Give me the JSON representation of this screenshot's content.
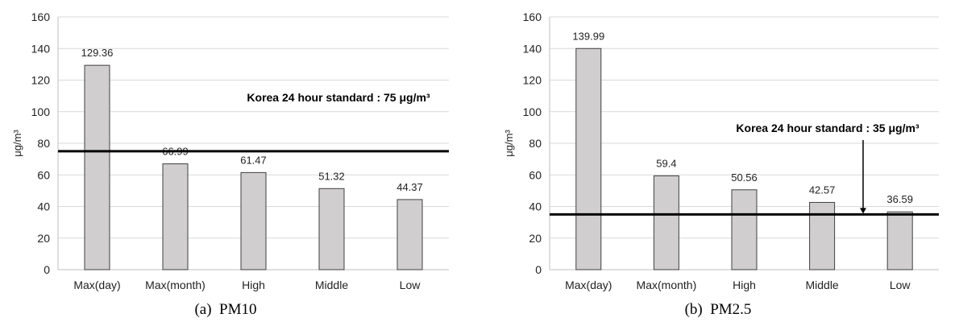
{
  "chart_data": [
    {
      "type": "bar",
      "caption": "(a)  PM10",
      "ylabel": "μg/m³",
      "ylim": [
        0,
        160
      ],
      "yticks": [
        0,
        20,
        40,
        60,
        80,
        100,
        120,
        140,
        160
      ],
      "categories": [
        "Max(day)",
        "Max(month)",
        "High",
        "Middle",
        "Low"
      ],
      "values": [
        129.36,
        66.99,
        61.47,
        51.32,
        44.37
      ],
      "value_labels": [
        "129.36",
        "66.99",
        "61.47",
        "51.32",
        "44.37"
      ],
      "grid": true,
      "bar_color": "#d0cece",
      "reference_line": {
        "value": 75,
        "label": "Korea 24 hour standard : 75 μg/m³"
      }
    },
    {
      "type": "bar",
      "caption": "(b)  PM2.5",
      "ylabel": "μg/m³",
      "ylim": [
        0,
        160
      ],
      "yticks": [
        0,
        20,
        40,
        60,
        80,
        100,
        120,
        140,
        160
      ],
      "categories": [
        "Max(day)",
        "Max(month)",
        "High",
        "Middle",
        "Low"
      ],
      "values": [
        139.99,
        59.4,
        50.56,
        42.57,
        36.59
      ],
      "value_labels": [
        "139.99",
        "59.4",
        "50.56",
        "42.57",
        "36.59"
      ],
      "grid": true,
      "bar_color": "#d0cece",
      "reference_line": {
        "value": 35,
        "label": "Korea 24 hour standard : 35 μg/m³"
      }
    }
  ]
}
